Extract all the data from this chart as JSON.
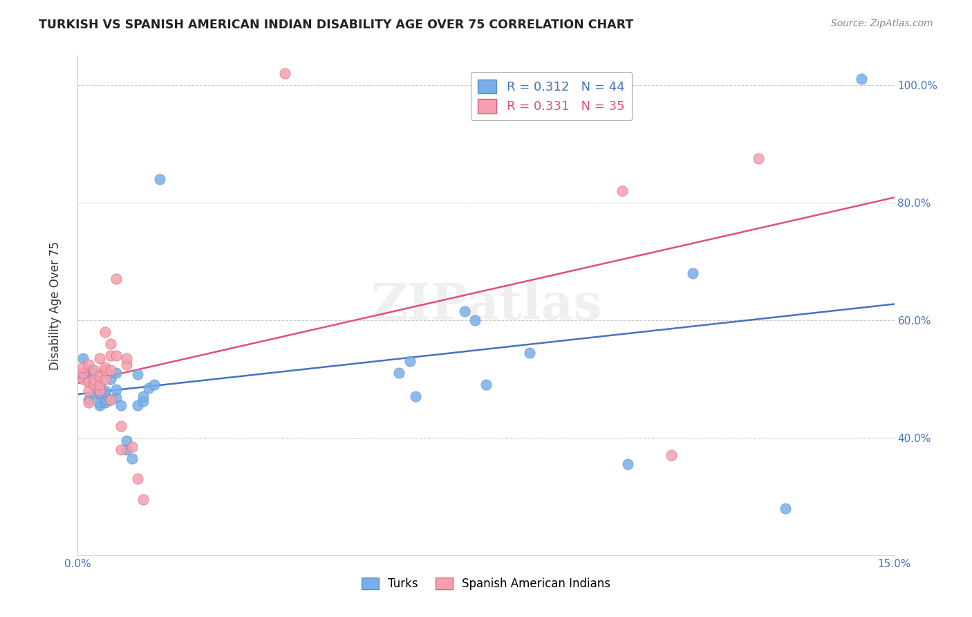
{
  "title": "TURKISH VS SPANISH AMERICAN INDIAN DISABILITY AGE OVER 75 CORRELATION CHART",
  "source": "Source: ZipAtlas.com",
  "xlabel_bottom": "",
  "ylabel": "Disability Age Over 75",
  "xlim": [
    0.0,
    0.15
  ],
  "ylim": [
    0.2,
    1.05
  ],
  "xticks": [
    0.0,
    0.03,
    0.06,
    0.09,
    0.12,
    0.15
  ],
  "xticklabels": [
    "0.0%",
    "",
    "",
    "",
    "",
    "15.0%"
  ],
  "yticks": [
    0.4,
    0.6,
    0.8,
    1.0
  ],
  "yticklabels": [
    "40.0%",
    "60.0%",
    "80.0%",
    "100.0%"
  ],
  "legend_entries": [
    {
      "label": "R = 0.312   N = 44",
      "color": "#7aaee8"
    },
    {
      "label": "R = 0.331   N = 35",
      "color": "#f08080"
    }
  ],
  "turks_x": [
    0.001,
    0.001,
    0.002,
    0.002,
    0.002,
    0.003,
    0.003,
    0.003,
    0.003,
    0.004,
    0.004,
    0.004,
    0.004,
    0.005,
    0.005,
    0.005,
    0.005,
    0.006,
    0.006,
    0.007,
    0.007,
    0.007,
    0.008,
    0.009,
    0.009,
    0.01,
    0.011,
    0.011,
    0.012,
    0.012,
    0.013,
    0.014,
    0.015,
    0.059,
    0.061,
    0.062,
    0.071,
    0.073,
    0.075,
    0.083,
    0.101,
    0.113,
    0.13,
    0.144
  ],
  "turks_y": [
    0.505,
    0.535,
    0.465,
    0.495,
    0.515,
    0.475,
    0.49,
    0.5,
    0.51,
    0.455,
    0.46,
    0.475,
    0.49,
    0.46,
    0.465,
    0.475,
    0.48,
    0.465,
    0.5,
    0.468,
    0.482,
    0.51,
    0.455,
    0.38,
    0.395,
    0.365,
    0.455,
    0.508,
    0.462,
    0.47,
    0.485,
    0.49,
    0.84,
    0.51,
    0.53,
    0.47,
    0.615,
    0.6,
    0.49,
    0.545,
    0.355,
    0.68,
    0.28,
    1.01
  ],
  "spanish_x": [
    0.001,
    0.001,
    0.001,
    0.002,
    0.002,
    0.002,
    0.002,
    0.003,
    0.003,
    0.003,
    0.004,
    0.004,
    0.004,
    0.004,
    0.005,
    0.005,
    0.005,
    0.005,
    0.006,
    0.006,
    0.006,
    0.006,
    0.007,
    0.007,
    0.008,
    0.008,
    0.009,
    0.009,
    0.01,
    0.011,
    0.012,
    0.038,
    0.1,
    0.109,
    0.125
  ],
  "spanish_y": [
    0.5,
    0.51,
    0.52,
    0.46,
    0.48,
    0.495,
    0.525,
    0.49,
    0.5,
    0.515,
    0.48,
    0.49,
    0.505,
    0.535,
    0.5,
    0.515,
    0.52,
    0.58,
    0.465,
    0.515,
    0.54,
    0.56,
    0.67,
    0.54,
    0.42,
    0.38,
    0.525,
    0.535,
    0.385,
    0.33,
    0.295,
    1.02,
    0.82,
    0.37,
    0.875
  ],
  "turks_color": "#7aaee8",
  "turks_edge_color": "#5090d0",
  "spanish_color": "#f5a0b0",
  "spanish_edge_color": "#e06070",
  "blue_line_color": "#4472c4",
  "pink_line_color": "#e05070",
  "background_color": "#ffffff",
  "grid_color": "#cccccc",
  "watermark": "ZIPatlas",
  "right_axis_color": "#4472c4"
}
